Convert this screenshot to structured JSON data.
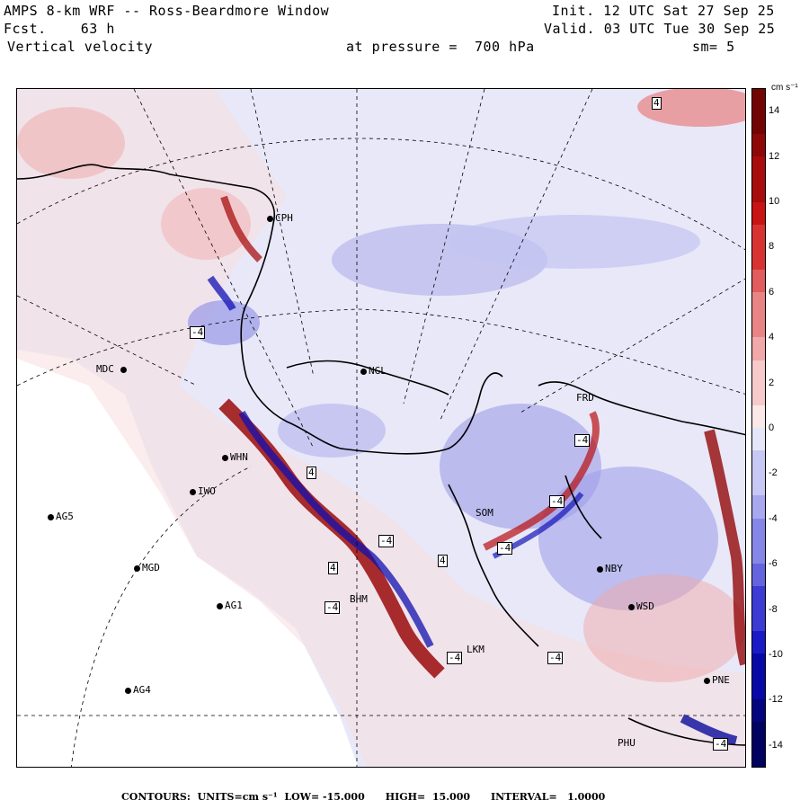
{
  "header": {
    "title": "AMPS 8-km WRF -- Ross-Beardmore Window",
    "forecast": "Fcst.    63 h",
    "field": "Vertical velocity",
    "init": "Init. 12 UTC Sat 27 Sep 25",
    "valid": "Valid. 03 UTC Tue 30 Sep 25",
    "pressure": "at pressure =  700 hPa",
    "smoothing": "sm= 5"
  },
  "stations": [
    {
      "id": "CPH",
      "label": "CPH"
    },
    {
      "id": "MDC",
      "label": "MDC"
    },
    {
      "id": "NGL",
      "label": "NGL"
    },
    {
      "id": "WHN",
      "label": "WHN"
    },
    {
      "id": "IWO",
      "label": "IWO"
    },
    {
      "id": "AG5",
      "label": "AG5"
    },
    {
      "id": "MGD",
      "label": "MGD"
    },
    {
      "id": "AG1",
      "label": "AG1"
    },
    {
      "id": "AG4",
      "label": "AG4"
    },
    {
      "id": "NBY",
      "label": "NBY"
    },
    {
      "id": "WSD",
      "label": "WSD"
    },
    {
      "id": "PNE",
      "label": "PNE"
    },
    {
      "id": "PHU",
      "label": "PHU"
    },
    {
      "id": "SOM",
      "label": "SOM"
    },
    {
      "id": "BHM",
      "label": "BHM"
    },
    {
      "id": "FRD",
      "label": "FRD"
    },
    {
      "id": "LKM",
      "label": "LKM"
    }
  ],
  "contour_labels": [
    "4",
    "-4",
    "4",
    "-4",
    "-4",
    "4",
    "-4",
    "-4",
    "-4",
    "-4",
    "-4",
    "-4",
    "4"
  ],
  "colorbar": {
    "units": "cm s⁻¹",
    "ticks": [
      "14",
      "12",
      "10",
      "8",
      "6",
      "4",
      "2",
      "0",
      "-2",
      "-4",
      "-6",
      "-8",
      "-10",
      "-12",
      "-14"
    ],
    "levels": [
      15,
      -15
    ],
    "colors_positive": [
      "#fbe8e8",
      "#f6caca",
      "#f0a8a8",
      "#e98484",
      "#e15c5c",
      "#d83333",
      "#c81414",
      "#a80c0c",
      "#8e0808",
      "#720404"
    ],
    "colors_negative": [
      "#e6e6fa",
      "#c8c8f4",
      "#a8a8ee",
      "#8686e6",
      "#6464de",
      "#3c3cd4",
      "#1a1ac6",
      "#0808a6",
      "#04047e",
      "#020260"
    ]
  },
  "footer": "CONTOURS:  UNITS=cm s⁻¹  LOW= -15.000      HIGH=  15.000      INTERVAL=   1.0000"
}
